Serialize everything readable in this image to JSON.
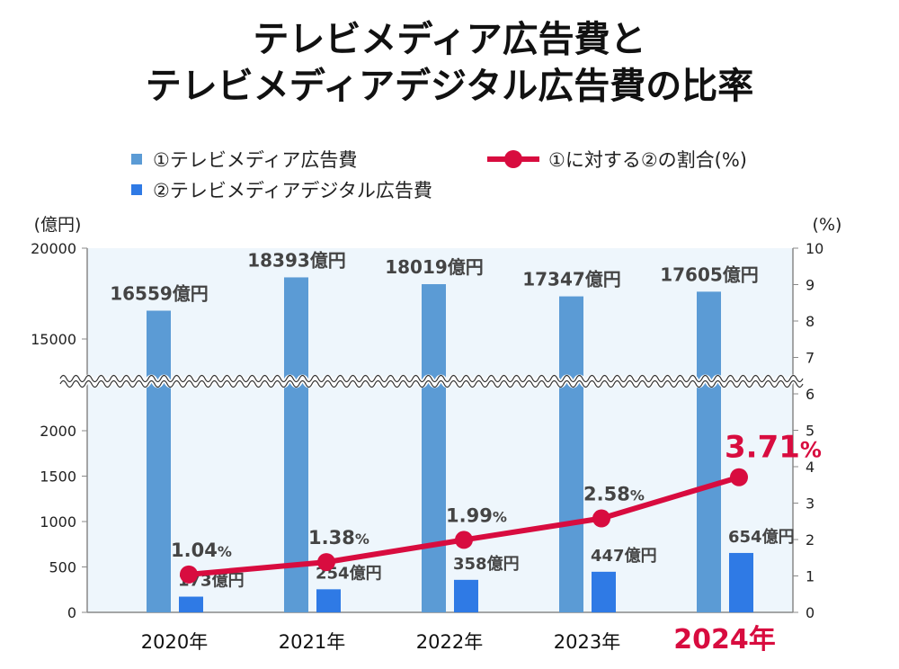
{
  "title_line1": "テレビメディア広告費と",
  "title_line2": "テレビメディアデジタル広告費の比率",
  "legend": [
    {
      "label": "①テレビメディア広告費",
      "color": "#5b9bd5"
    },
    {
      "label": "②テレビメディアデジタル広告費",
      "color": "#2f7ae5"
    },
    {
      "label": "①に対する②の割合(%)",
      "color": "#d80c3f"
    }
  ],
  "chart_data": {
    "type": "bar+line",
    "categories": [
      "2020年",
      "2021年",
      "2022年",
      "2023年",
      "2024年"
    ],
    "highlight_category": "2024年",
    "series": [
      {
        "name": "①テレビメディア広告費",
        "type": "bar",
        "axis": "left",
        "values": [
          16559,
          18393,
          18019,
          17347,
          17605
        ],
        "labels": [
          "16559",
          "18393",
          "18019",
          "17347",
          "17605"
        ],
        "color": "#5b9bd5"
      },
      {
        "name": "②テレビメディアデジタル広告費",
        "type": "bar",
        "axis": "left",
        "values": [
          173,
          254,
          358,
          447,
          654
        ],
        "labels": [
          "173",
          "254",
          "358",
          "447",
          "654"
        ],
        "color": "#2f7ae5"
      },
      {
        "name": "①に対する②の割合(%)",
        "type": "line",
        "axis": "right",
        "values": [
          1.04,
          1.38,
          1.99,
          2.58,
          3.71
        ],
        "labels": [
          "1.04",
          "1.38",
          "1.99",
          "2.58",
          "3.71"
        ],
        "color": "#d80c3f"
      }
    ],
    "bar_unit": "億円",
    "pct_unit": "%",
    "left_axis": {
      "label": "(億円)",
      "ticks_lower": [
        0,
        500,
        1000,
        1500,
        2000
      ],
      "ticks_upper": [
        15000,
        20000
      ],
      "broken": true,
      "lower_range": [
        0,
        2000
      ],
      "upper_range": [
        15000,
        20000
      ]
    },
    "right_axis": {
      "label": "(%)",
      "ticks": [
        0,
        1,
        2,
        3,
        4,
        5,
        6,
        7,
        8,
        9,
        10
      ],
      "ylim": [
        0,
        10
      ]
    },
    "plot_background": "#eef6fc"
  }
}
